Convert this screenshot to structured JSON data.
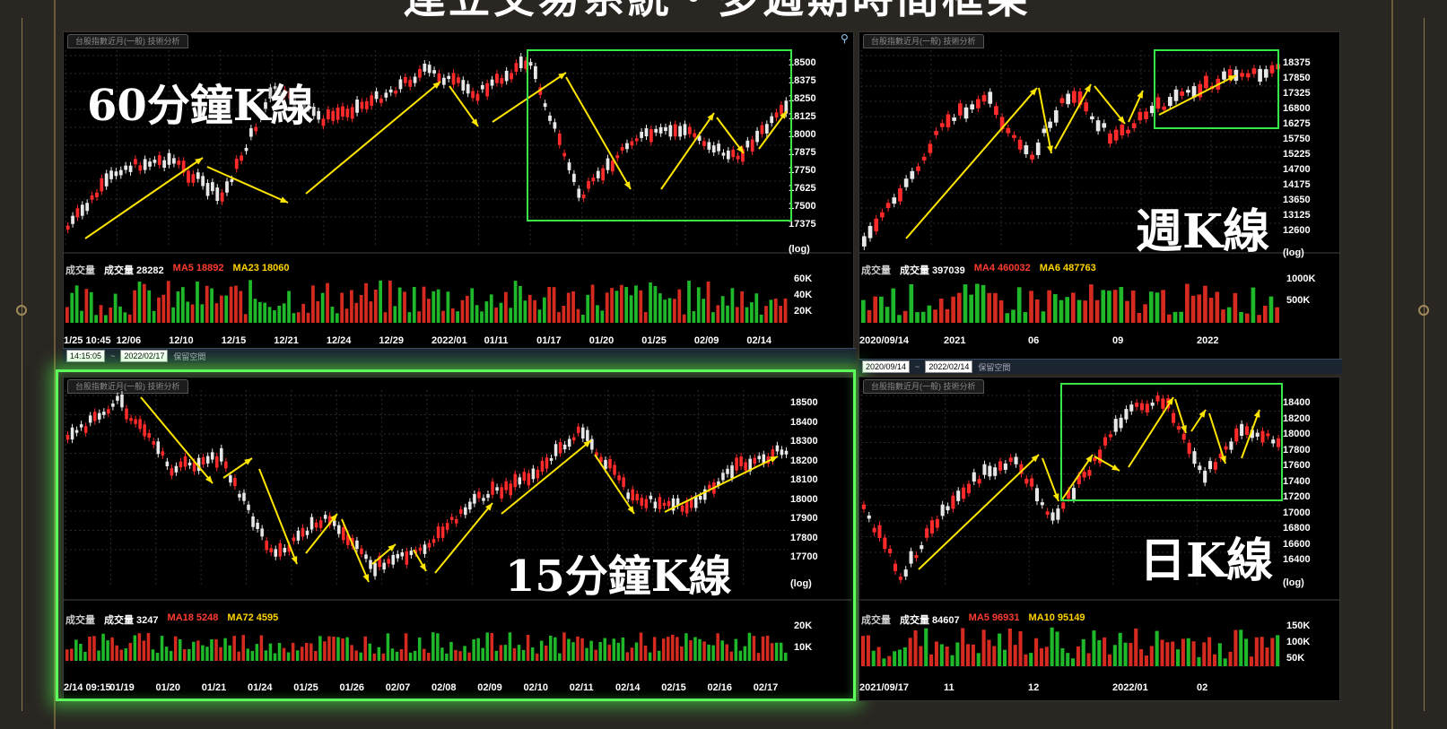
{
  "header": {
    "title": "連立交易系統‧多週期時間框架"
  },
  "panels": {
    "m60": {
      "tab": "台股指數近月(一般) 技術分析",
      "label": "60分鐘K線",
      "prices": [
        "18500",
        "18375",
        "18250",
        "18125",
        "18000",
        "17875",
        "17750",
        "17625",
        "17500",
        "17375"
      ],
      "log": "(log)",
      "vol": {
        "label": "成交量",
        "vol": "成交量 28282",
        "ma1": "MA5 18892",
        "ma2": "MA23 18060"
      },
      "vol_axis": [
        "60K",
        "40K",
        "20K"
      ],
      "dates": [
        "1/25 10:45",
        "12/06",
        "12/10",
        "12/15",
        "12/21",
        "12/24",
        "12/29",
        "2022/01",
        "01/11",
        "01/17",
        "01/20",
        "01/25",
        "02/09",
        "02/14"
      ]
    },
    "week": {
      "tab": "台股指數近月(一般) 技術分析",
      "label": "週K線",
      "prices": [
        "18375",
        "17850",
        "17325",
        "16800",
        "16275",
        "15750",
        "15225",
        "14700",
        "14175",
        "13650",
        "13125",
        "12600"
      ],
      "log": "(log)",
      "vol": {
        "label": "成交量",
        "vol": "成交量 397039",
        "ma1": "MA4 460032",
        "ma2": "MA6 487763"
      },
      "vol_axis": [
        "1000K",
        "500K"
      ],
      "dates": [
        "2020/09/14",
        "2021",
        "06",
        "09",
        "2022"
      ]
    },
    "m15": {
      "tab": "台股指數近月(一般) 技術分析",
      "label": "15分鐘K線",
      "prices": [
        "18500",
        "18400",
        "18300",
        "18200",
        "18100",
        "18000",
        "17900",
        "17800",
        "17700"
      ],
      "log": "(log)",
      "vol": {
        "label": "成交量",
        "vol": "成交量 3247",
        "ma1": "MA18 5248",
        "ma2": "MA72 4595"
      },
      "vol_axis": [
        "20K",
        "10K"
      ],
      "dates": [
        "2/14 09:15",
        "01/19",
        "01/20",
        "01/21",
        "01/24",
        "01/25",
        "01/26",
        "02/07",
        "02/08",
        "02/09",
        "02/10",
        "02/11",
        "02/14",
        "02/15",
        "02/16",
        "02/17"
      ]
    },
    "day": {
      "tab": "台股指數近月(一般) 技術分析",
      "label": "日K線",
      "prices": [
        "18400",
        "18200",
        "18000",
        "17800",
        "17600",
        "17400",
        "17200",
        "17000",
        "16800",
        "16600",
        "16400"
      ],
      "log": "(log)",
      "vol": {
        "label": "成交量",
        "vol": "成交量 84607",
        "ma1": "MA5 96931",
        "ma2": "MA10 95149"
      },
      "vol_axis": [
        "150K",
        "100K",
        "50K"
      ],
      "dates": [
        "2021/09/17",
        "11",
        "12",
        "2022/01",
        "02"
      ]
    }
  },
  "toolbars": {
    "left": {
      "time": "14:15:05",
      "date": "2022/02/17",
      "keep": "保留空間"
    },
    "right": {
      "from": "2020/09/14",
      "to": "2022/02/14",
      "keep": "保留空間"
    }
  },
  "colors": {
    "up": "#ff2a2a",
    "down": "#e8e8e8",
    "trend": "#ffe600",
    "highlight": "#39e64a",
    "vol_up": "#d42a1f",
    "vol_down": "#1fb82a"
  }
}
